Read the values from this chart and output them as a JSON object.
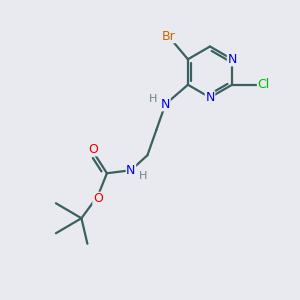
{
  "bg_color": "#e8eaf0",
  "atom_colors": {
    "C": "#3a6060",
    "N": "#0000ee",
    "O": "#ee0000",
    "Br": "#cc6600",
    "Cl": "#00bb00",
    "H": "#708090"
  },
  "bond_color": "#3a6060",
  "bond_width": 1.6,
  "ring_color": "#3a6060",
  "font": "DejaVu Sans"
}
